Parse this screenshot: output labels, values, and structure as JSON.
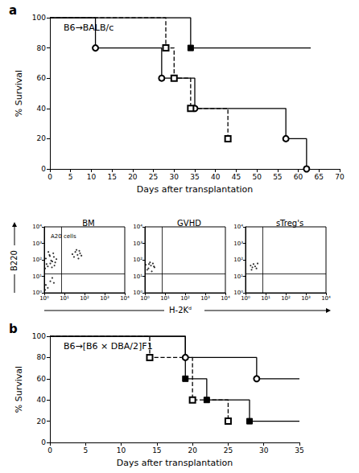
{
  "chart_data": [
    {
      "type": "line",
      "panel": "a",
      "title": "B6→BALB/c",
      "x_label": "Days after transplantation",
      "y_label": "% Survival",
      "xlim": [
        0,
        70
      ],
      "xticks": [
        0,
        5,
        10,
        15,
        20,
        25,
        30,
        35,
        40,
        45,
        50,
        55,
        60,
        65,
        70
      ],
      "ylim": [
        0,
        100
      ],
      "yticks": [
        0,
        20,
        40,
        60,
        80,
        100
      ],
      "grid": false,
      "series": [
        {
          "color": "#000000",
          "marker": "filled_square",
          "line_style": "solid",
          "x": [
            0,
            34,
            63
          ],
          "values": [
            100,
            80,
            80
          ]
        },
        {
          "color": "#000000",
          "marker": "open_circle",
          "line_style": "solid",
          "x": [
            0,
            11,
            27,
            35,
            57,
            62
          ],
          "values": [
            100,
            80,
            60,
            40,
            20,
            0
          ]
        },
        {
          "color": "#000000",
          "marker": "open_square",
          "line_style": "dashed",
          "x": [
            0,
            28,
            30,
            34,
            43
          ],
          "values": [
            100,
            80,
            60,
            40,
            20
          ]
        }
      ]
    },
    {
      "type": "scatter",
      "title": "BM",
      "log": true,
      "xlim": [
        1,
        10000
      ],
      "ylim": [
        1,
        10000
      ],
      "xticks": [
        {
          "value": 1,
          "label": "10⁰"
        },
        {
          "value": 10,
          "label": "10¹"
        },
        {
          "value": 100,
          "label": "10²"
        },
        {
          "value": 1000,
          "label": "10³"
        },
        {
          "value": 10000,
          "label": "10⁴"
        }
      ],
      "yticks": [
        {
          "value": 1,
          "label": "10⁰"
        },
        {
          "value": 10,
          "label": "10¹"
        },
        {
          "value": 100,
          "label": "10²"
        },
        {
          "value": 1000,
          "label": "10³"
        },
        {
          "value": 10000,
          "label": "10⁴"
        }
      ],
      "gates": {
        "x": 7,
        "y": 15
      },
      "annotations": [
        {
          "text": "A20 cells",
          "x": 9,
          "y": 2500
        }
      ],
      "color": "#000000",
      "x": [
        1.5,
        2,
        2.5,
        1.2,
        3,
        1.8,
        2.2,
        1.3,
        3.5,
        2.8,
        1.6,
        4,
        1.1,
        2.4,
        3.2,
        1.9,
        30,
        45,
        60,
        35,
        50,
        70,
        40,
        55,
        25,
        1.2,
        2,
        1.5,
        3,
        1.1,
        2.5
      ],
      "values": [
        40,
        60,
        80,
        120,
        150,
        200,
        90,
        55,
        70,
        250,
        300,
        110,
        30,
        35,
        45,
        170,
        150,
        200,
        250,
        300,
        120,
        180,
        400,
        350,
        220,
        3,
        5,
        2,
        4,
        1.5,
        8
      ]
    },
    {
      "type": "scatter",
      "title": "GVHD",
      "log": true,
      "xlim": [
        1,
        10000
      ],
      "ylim": [
        1,
        10000
      ],
      "xticks": [
        {
          "value": 1,
          "label": "10⁰"
        },
        {
          "value": 10,
          "label": "10¹"
        },
        {
          "value": 100,
          "label": "10²"
        },
        {
          "value": 1000,
          "label": "10³"
        },
        {
          "value": 10000,
          "label": "10⁴"
        }
      ],
      "yticks": [
        {
          "value": 1,
          "label": "10⁰"
        },
        {
          "value": 10,
          "label": "10¹"
        },
        {
          "value": 100,
          "label": "10²"
        },
        {
          "value": 1000,
          "label": "10³"
        },
        {
          "value": 10000,
          "label": "10⁴"
        }
      ],
      "gates": {
        "x": 7,
        "y": 15
      },
      "color": "#000000",
      "x": [
        1.5,
        2,
        2.5,
        1.3,
        3,
        1.8,
        2.2,
        1.1,
        2.8,
        1.6
      ],
      "values": [
        30,
        45,
        60,
        25,
        35,
        70,
        20,
        50,
        40,
        55
      ]
    },
    {
      "type": "scatter",
      "title": "sTreg's",
      "log": true,
      "xlim": [
        1,
        10000
      ],
      "ylim": [
        1,
        10000
      ],
      "xticks": [
        {
          "value": 1,
          "label": "10⁰"
        },
        {
          "value": 10,
          "label": "10¹"
        },
        {
          "value": 100,
          "label": "10²"
        },
        {
          "value": 1000,
          "label": "10³"
        },
        {
          "value": 10000,
          "label": "10⁴"
        }
      ],
      "yticks": [
        {
          "value": 1,
          "label": "10⁰"
        },
        {
          "value": 10,
          "label": "10¹"
        },
        {
          "value": 100,
          "label": "10²"
        },
        {
          "value": 1000,
          "label": "10³"
        },
        {
          "value": 10000,
          "label": "10⁴"
        }
      ],
      "gates": {
        "x": 7,
        "y": 15
      },
      "color": "#000000",
      "x": [
        2,
        3,
        2.5,
        3.5,
        1.8,
        4,
        2.2
      ],
      "values": [
        25,
        40,
        55,
        30,
        45,
        60,
        35
      ]
    },
    {
      "type": "line",
      "panel": "b",
      "title": "B6→[B6 × DBA/2]F1",
      "x_label": "Days after transplantation",
      "y_label": "% Survival",
      "xlim": [
        0,
        35
      ],
      "xticks": [
        0,
        5,
        10,
        15,
        20,
        25,
        30,
        35
      ],
      "ylim": [
        0,
        100
      ],
      "yticks": [
        0,
        20,
        40,
        60,
        80,
        100
      ],
      "grid": false,
      "series": [
        {
          "color": "#000000",
          "marker": "open_circle",
          "line_style": "solid",
          "x": [
            0,
            19,
            29,
            35
          ],
          "values": [
            100,
            80,
            60,
            60
          ]
        },
        {
          "color": "#000000",
          "marker": "filled_square",
          "line_style": "solid",
          "x": [
            0,
            19,
            22,
            28,
            35
          ],
          "values": [
            100,
            60,
            40,
            20,
            20
          ]
        },
        {
          "color": "#000000",
          "marker": "open_square",
          "line_style": "dashed",
          "x": [
            0,
            14,
            20,
            25
          ],
          "values": [
            100,
            80,
            40,
            20
          ]
        }
      ]
    }
  ],
  "flow_labels": {
    "x": "H-2Kᵈ",
    "y": "B220"
  }
}
